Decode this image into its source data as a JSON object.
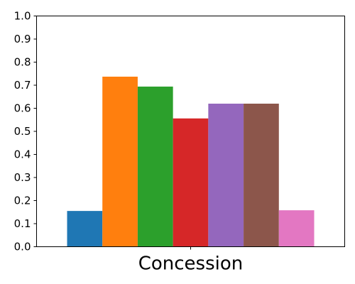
{
  "chart_data": {
    "type": "bar",
    "categories": [
      "Concession"
    ],
    "series": [
      {
        "values": [
          0.155
        ],
        "color": "#1f77b4"
      },
      {
        "values": [
          0.737
        ],
        "color": "#ff7f0e"
      },
      {
        "values": [
          0.694
        ],
        "color": "#2ca02c"
      },
      {
        "values": [
          0.556
        ],
        "color": "#d62728"
      },
      {
        "values": [
          0.62
        ],
        "color": "#9467bd"
      },
      {
        "values": [
          0.62
        ],
        "color": "#8c564b"
      },
      {
        "values": [
          0.158
        ],
        "color": "#e377c2"
      }
    ],
    "title": "",
    "xlabel": "",
    "ylabel": "",
    "ylim": [
      0,
      1.0
    ],
    "yticks": [
      "0.0",
      "0.1",
      "0.2",
      "0.3",
      "0.4",
      "0.5",
      "0.6",
      "0.7",
      "0.8",
      "0.9",
      "1.0"
    ],
    "grid": false,
    "legend": false
  }
}
